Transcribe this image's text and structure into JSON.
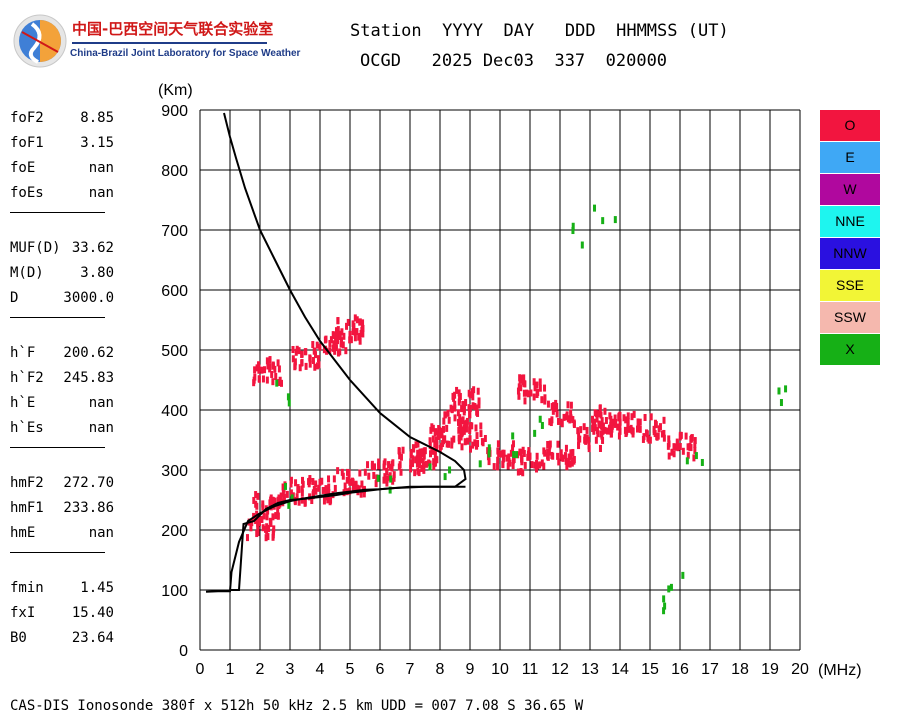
{
  "header": {
    "logo_zh": "中国-巴西空间天气联合实验室",
    "logo_en": "China-Brazil Joint Laboratory for Space Weather",
    "line1": "Station  YYYY  DAY   DDD  HHMMSS (UT)",
    "line2": "OCGD   2025 Dec03  337  020000"
  },
  "parameters": [
    {
      "label": "foF2",
      "value": "8.85"
    },
    {
      "label": "foF1",
      "value": "3.15"
    },
    {
      "label": "foE",
      "value": "nan"
    },
    {
      "label": "foEs",
      "value": "nan"
    },
    {
      "label": "MUF(D)",
      "value": "33.62"
    },
    {
      "label": "M(D)",
      "value": "3.80"
    },
    {
      "label": "D",
      "value": "3000.0"
    },
    {
      "label": "h`F",
      "value": "200.62"
    },
    {
      "label": "h`F2",
      "value": "245.83"
    },
    {
      "label": "h`E",
      "value": "nan"
    },
    {
      "label": "h`Es",
      "value": "nan"
    },
    {
      "label": "hmF2",
      "value": "272.70"
    },
    {
      "label": "hmF1",
      "value": "233.86"
    },
    {
      "label": "hmE",
      "value": "nan"
    },
    {
      "label": "fmin",
      "value": "1.45"
    },
    {
      "label": "fxI",
      "value": "15.40"
    },
    {
      "label": "B0",
      "value": "23.64"
    }
  ],
  "legend": [
    {
      "label": "O",
      "color": "#f2153f",
      "text_color": "#000000"
    },
    {
      "label": "E",
      "color": "#3fa8f5",
      "text_color": "#000000"
    },
    {
      "label": "W",
      "color": "#b0089e",
      "text_color": "#000000"
    },
    {
      "label": "NNE",
      "color": "#1ef5ef",
      "text_color": "#000000"
    },
    {
      "label": "NNW",
      "color": "#2a10e0",
      "text_color": "#000000"
    },
    {
      "label": "SSE",
      "color": "#f2f536",
      "text_color": "#000000"
    },
    {
      "label": "SSW",
      "color": "#f5b8ae",
      "text_color": "#000000"
    },
    {
      "label": "X",
      "color": "#16b016",
      "text_color": "#000000"
    }
  ],
  "footer": "CAS-DIS Ionosonde 380f x 512h 50 kHz 2.5 km UDD = 007 7.08 S 36.65 W",
  "chart_data": {
    "type": "scatter",
    "title": "",
    "xlabel": "(MHz)",
    "ylabel": "(Km)",
    "xlim": [
      0,
      20
    ],
    "ylim": [
      0,
      900
    ],
    "xticks": [
      0,
      1,
      2,
      3,
      4,
      5,
      6,
      7,
      8,
      9,
      10,
      11,
      12,
      13,
      14,
      15,
      16,
      17,
      18,
      19,
      20
    ],
    "yticks": [
      0,
      100,
      200,
      300,
      400,
      500,
      600,
      700,
      800,
      900
    ],
    "grid": true,
    "echo_regions": [
      {
        "polarization": "O",
        "color": "#f2153f",
        "points": [
          [
            2.0,
            210
          ],
          [
            2.2,
            245
          ],
          [
            3.0,
            270
          ],
          [
            4.0,
            272
          ],
          [
            5.0,
            285
          ],
          [
            6.0,
            300
          ],
          [
            7.0,
            320
          ],
          [
            7.5,
            330
          ],
          [
            8.0,
            360
          ],
          [
            8.5,
            390
          ],
          [
            8.8,
            420
          ],
          [
            9.0,
            360
          ],
          [
            10.0,
            330
          ],
          [
            11.0,
            320
          ],
          [
            12.0,
            330
          ],
          [
            13.0,
            360
          ],
          [
            14.0,
            380
          ],
          [
            15.0,
            375
          ],
          [
            16.0,
            345
          ],
          [
            4.5,
            520
          ],
          [
            5.0,
            540
          ],
          [
            2.2,
            470
          ],
          [
            3.5,
            495
          ],
          [
            11.0,
            440
          ],
          [
            12.0,
            400
          ],
          [
            13.5,
            390
          ]
        ]
      },
      {
        "polarization": "X",
        "color": "#16b016",
        "points": [
          [
            3.0,
            260
          ],
          [
            6.0,
            285
          ],
          [
            8.0,
            300
          ],
          [
            9.5,
            330
          ],
          [
            10.5,
            350
          ],
          [
            11.0,
            380
          ],
          [
            12.5,
            700
          ],
          [
            13.4,
            735
          ],
          [
            15.3,
            85
          ],
          [
            15.9,
            117
          ],
          [
            19.2,
            430
          ],
          [
            16.5,
            335
          ],
          [
            2.6,
            435
          ]
        ]
      }
    ],
    "trace_curves": [
      {
        "name": "virtual height trace",
        "x": [
          1.0,
          1.1,
          1.2,
          1.3,
          1.45,
          1.8,
          2.2,
          2.6,
          3.0,
          3.5,
          4.0,
          4.5,
          5.0,
          5.5,
          6.0,
          6.5,
          7.0,
          7.5,
          8.0,
          8.5,
          8.85
        ],
        "y": [
          100,
          100,
          100,
          100,
          210,
          215,
          235,
          245,
          250,
          252,
          255,
          258,
          262,
          265,
          268,
          270,
          272,
          272,
          272,
          272,
          272
        ]
      },
      {
        "name": "electron density profile",
        "x": [
          0.2,
          0.6,
          1.0,
          1.05,
          1.1,
          1.3,
          1.6,
          2.0,
          2.5,
          3.0,
          3.5,
          4.0,
          4.5,
          5.0,
          5.5,
          6.0,
          6.5,
          7.0,
          7.5,
          8.0,
          8.5,
          8.85,
          8.8,
          8.5,
          8.0,
          7.0,
          6.0,
          5.0,
          4.0,
          3.5,
          3.0,
          2.5,
          2.0,
          1.5,
          1.2,
          1.0,
          0.8
        ],
        "y": [
          97,
          98,
          98,
          130,
          140,
          180,
          215,
          228,
          240,
          248,
          253,
          257,
          261,
          264,
          267,
          268,
          270,
          271,
          272,
          272,
          272,
          285,
          300,
          315,
          330,
          355,
          395,
          450,
          515,
          555,
          600,
          650,
          700,
          770,
          820,
          855,
          895
        ]
      }
    ]
  }
}
